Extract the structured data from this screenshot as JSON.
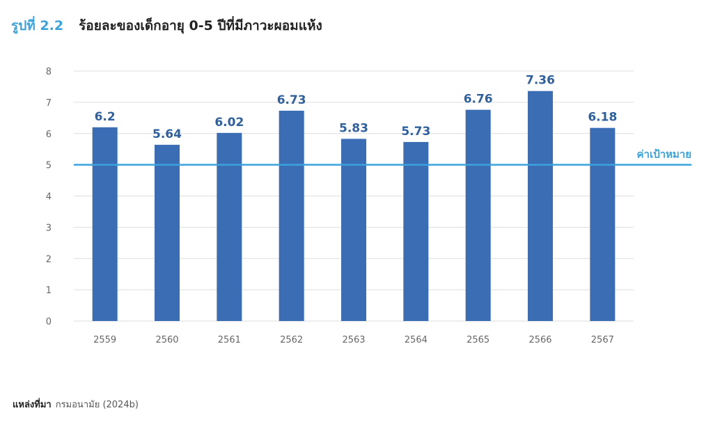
{
  "figure": {
    "number": "รูปที่ 2.2",
    "title": "ร้อยละของเด็กอายุ 0-5 ปีที่มีภาวะผอมแห้ง"
  },
  "source": {
    "label": "แหล่งที่มา",
    "text": "กรมอนามัย (2024b)"
  },
  "colors": {
    "bar": "#3b6db4",
    "data_label": "#2e5f9e",
    "target_line": "#3aa3dd",
    "grid": "#dddddd"
  },
  "chart_data": {
    "type": "bar",
    "title": "ร้อยละของเด็กอายุ 0-5 ปีที่มีภาวะผอมแห้ง",
    "xlabel": "",
    "ylabel": "",
    "categories": [
      "2559",
      "2560",
      "2561",
      "2562",
      "2563",
      "2564",
      "2565",
      "2566",
      "2567"
    ],
    "values": [
      6.2,
      5.64,
      6.02,
      6.73,
      5.83,
      5.73,
      6.76,
      7.36,
      6.18
    ],
    "value_labels": [
      "6.2",
      "5.64",
      "6.02",
      "6.73",
      "5.83",
      "5.73",
      "6.76",
      "7.36",
      "6.18"
    ],
    "ylim": [
      0,
      8
    ],
    "yticks": [
      "0",
      "1",
      "2",
      "3",
      "4",
      "5",
      "6",
      "7",
      "8"
    ],
    "grid": true,
    "target": {
      "value": 5,
      "label": "ค่าเป้าหมาย"
    }
  }
}
